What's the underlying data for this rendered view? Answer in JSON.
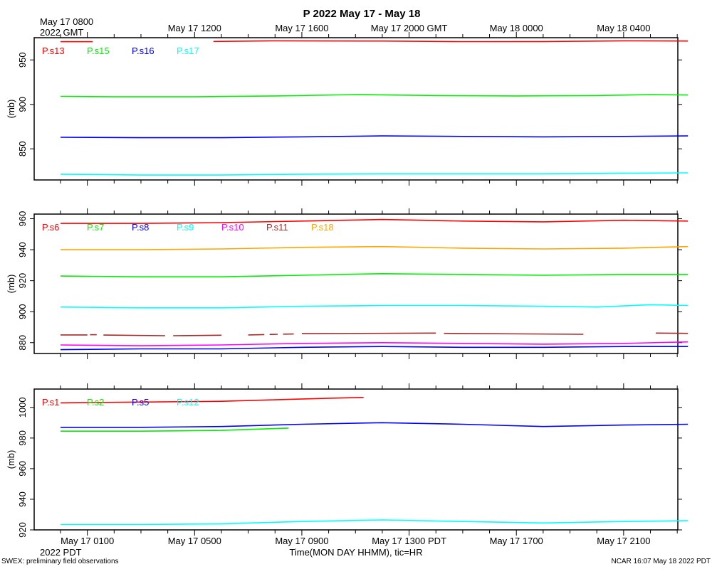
{
  "title": "P 2022 May 17 - May 18",
  "top_axis": {
    "first_label_line1": "May 17 0800",
    "first_label_line2": "2022 GMT",
    "labels": [
      "May 17 1200",
      "May 17 1600",
      "May 17 2000 GMT",
      "May 18 0000",
      "May 18 0400"
    ]
  },
  "bottom_axis": {
    "labels": [
      "May 17 0100",
      "May 17 0500",
      "May 17 0900",
      "May 17 1300 PDT",
      "May 17 1700",
      "May 17 2100"
    ],
    "sublabel": "2022 PDT",
    "xlabel": "Time(MON DAY HHMM), tic=HR"
  },
  "footer": {
    "left": "SWEX: preliminary field observations",
    "right": "NCAR 16:07 May 18 2022 PDT"
  },
  "chart_data": [
    {
      "type": "line",
      "ylabel": "(mb)",
      "ylim": [
        815,
        975
      ],
      "yticks": [
        850,
        900,
        950
      ],
      "x_unit": "hours since May 17 0000 PDT",
      "xlim": [
        0,
        23.4
      ],
      "series": [
        {
          "name": "P.s13",
          "color": "#ff0000",
          "segments": [
            [
              [
                0,
                970.5
              ],
              [
                1.2,
                970.5
              ]
            ],
            [
              [
                5.7,
                970.8
              ],
              [
                8,
                971.5
              ],
              [
                12,
                971.2
              ],
              [
                15,
                970.6
              ],
              [
                18,
                970.7
              ],
              [
                21,
                971.5
              ],
              [
                23.4,
                971.2
              ]
            ]
          ]
        },
        {
          "name": "P.s15",
          "color": "#00ee00",
          "segments": [
            [
              [
                0,
                909
              ],
              [
                2,
                908.5
              ],
              [
                5,
                908.5
              ],
              [
                8,
                909.5
              ],
              [
                11,
                911
              ],
              [
                14,
                910
              ],
              [
                17,
                909.5
              ],
              [
                20,
                910
              ],
              [
                22,
                911
              ],
              [
                23.4,
                910.5
              ]
            ]
          ]
        },
        {
          "name": "P.s16",
          "color": "#0000ff",
          "segments": [
            [
              [
                0,
                863
              ],
              [
                3,
                862.5
              ],
              [
                6,
                862.5
              ],
              [
                9,
                863.5
              ],
              [
                12,
                864.5
              ],
              [
                15,
                864
              ],
              [
                18,
                863.5
              ],
              [
                21,
                864
              ],
              [
                23.4,
                864.5
              ]
            ]
          ]
        },
        {
          "name": "P.s17",
          "color": "#00ffff",
          "segments": [
            [
              [
                0,
                821.5
              ],
              [
                3,
                820.5
              ],
              [
                6,
                820.5
              ],
              [
                9,
                821.5
              ],
              [
                12,
                822
              ],
              [
                15,
                822
              ],
              [
                18,
                822
              ],
              [
                21,
                822.5
              ],
              [
                23.4,
                823
              ]
            ]
          ]
        }
      ]
    },
    {
      "type": "line",
      "ylabel": "(mb)",
      "ylim": [
        873,
        963
      ],
      "yticks": [
        880,
        900,
        920,
        940,
        960
      ],
      "x_unit": "hours since May 17 0000 PDT",
      "xlim": [
        0,
        23.4
      ],
      "series": [
        {
          "name": "P.s6",
          "color": "#ff0000",
          "segments": [
            [
              [
                0,
                957
              ],
              [
                3,
                957
              ],
              [
                6,
                957.5
              ],
              [
                9,
                958.5
              ],
              [
                12,
                959.5
              ],
              [
                15,
                958.5
              ],
              [
                18,
                958
              ],
              [
                21,
                959
              ],
              [
                23.4,
                958.5
              ]
            ]
          ]
        },
        {
          "name": "P.s7",
          "color": "#00ee00",
          "segments": [
            [
              [
                0,
                923
              ],
              [
                3,
                922.5
              ],
              [
                6,
                922.5
              ],
              [
                9,
                923.5
              ],
              [
                12,
                924.5
              ],
              [
                15,
                924
              ],
              [
                18,
                923.5
              ],
              [
                21,
                924
              ],
              [
                23.4,
                924
              ]
            ]
          ]
        },
        {
          "name": "P.s8",
          "color": "#0000ff",
          "segments": [
            [
              [
                0,
                875.5
              ],
              [
                3,
                876
              ],
              [
                6,
                876
              ],
              [
                9,
                877
              ],
              [
                12,
                877.5
              ],
              [
                15,
                877
              ],
              [
                18,
                877
              ],
              [
                21,
                877.5
              ],
              [
                23.4,
                877.5
              ]
            ]
          ]
        },
        {
          "name": "P.s9",
          "color": "#00ffff",
          "segments": [
            [
              [
                0,
                903
              ],
              [
                3,
                902.5
              ],
              [
                6,
                902.5
              ],
              [
                9,
                903.5
              ],
              [
                12,
                904
              ],
              [
                15,
                904
              ],
              [
                18,
                903.5
              ],
              [
                20,
                903
              ],
              [
                22,
                904.5
              ],
              [
                23.4,
                904
              ]
            ]
          ]
        },
        {
          "name": "P.s10",
          "color": "#ff00ff",
          "segments": [
            [
              [
                0,
                878.5
              ],
              [
                3,
                878
              ],
              [
                6,
                878.5
              ],
              [
                9,
                879.5
              ],
              [
                12,
                880
              ],
              [
                15,
                879.5
              ],
              [
                18,
                879
              ],
              [
                21,
                879.5
              ],
              [
                23.4,
                880.5
              ]
            ]
          ]
        },
        {
          "name": "P.s11",
          "color": "#a52a2a",
          "segments": [
            [
              [
                0,
                885
              ],
              [
                1,
                885
              ]
            ],
            [
              [
                1.1,
                885.1
              ],
              [
                1.35,
                885.1
              ]
            ],
            [
              [
                1.6,
                884.9
              ],
              [
                3.9,
                884.5
              ]
            ],
            [
              [
                4.2,
                884.5
              ],
              [
                6.0,
                884.8
              ]
            ],
            [
              [
                7.0,
                885.0
              ],
              [
                7.6,
                885.2
              ]
            ],
            [
              [
                7.8,
                885.3
              ],
              [
                8.1,
                885.4
              ]
            ],
            [
              [
                8.3,
                885.5
              ],
              [
                8.7,
                885.6
              ]
            ],
            [
              [
                9.0,
                885.8
              ],
              [
                14.0,
                886.2
              ]
            ],
            [
              [
                14.3,
                886.0
              ],
              [
                19.5,
                885.4
              ]
            ],
            [
              [
                22.2,
                886.2
              ],
              [
                23.4,
                886.0
              ]
            ]
          ]
        },
        {
          "name": "P.s18",
          "color": "#ffa500",
          "segments": [
            [
              [
                0,
                940
              ],
              [
                3,
                940
              ],
              [
                6,
                940.5
              ],
              [
                9,
                941.5
              ],
              [
                12,
                942
              ],
              [
                15,
                941
              ],
              [
                18,
                940.5
              ],
              [
                21,
                941
              ],
              [
                23.4,
                942
              ]
            ]
          ]
        }
      ]
    },
    {
      "type": "line",
      "ylabel": "(mb)",
      "ylim": [
        920,
        1012
      ],
      "yticks": [
        920,
        940,
        960,
        980,
        1000
      ],
      "x_unit": "hours since May 17 0000 PDT",
      "xlim": [
        0,
        23.4
      ],
      "series": [
        {
          "name": "P.s1",
          "color": "#ff0000",
          "segments": [
            [
              [
                0,
                1003
              ],
              [
                3,
                1003.5
              ],
              [
                6,
                1004
              ],
              [
                8,
                1005
              ],
              [
                10,
                1006
              ],
              [
                11.3,
                1006.5
              ]
            ]
          ]
        },
        {
          "name": "P.s2",
          "color": "#00ee00",
          "segments": [
            [
              [
                0,
                984.5
              ],
              [
                3,
                984.5
              ],
              [
                6,
                985
              ],
              [
                8.5,
                986.5
              ]
            ]
          ]
        },
        {
          "name": "P.s5",
          "color": "#0000ff",
          "segments": [
            [
              [
                0,
                987
              ],
              [
                3,
                987
              ],
              [
                6,
                987.5
              ],
              [
                9,
                989
              ],
              [
                12,
                990
              ],
              [
                15,
                989
              ],
              [
                18,
                987.5
              ],
              [
                21,
                988.5
              ],
              [
                23.4,
                989
              ]
            ]
          ]
        },
        {
          "name": "P.s12",
          "color": "#00ffff",
          "segments": [
            [
              [
                0,
                923.5
              ],
              [
                3,
                923.5
              ],
              [
                6,
                924
              ],
              [
                9,
                925.5
              ],
              [
                12,
                926.5
              ],
              [
                15,
                925.5
              ],
              [
                18,
                924.5
              ],
              [
                21,
                925.5
              ],
              [
                23.4,
                926
              ]
            ]
          ]
        }
      ]
    }
  ]
}
